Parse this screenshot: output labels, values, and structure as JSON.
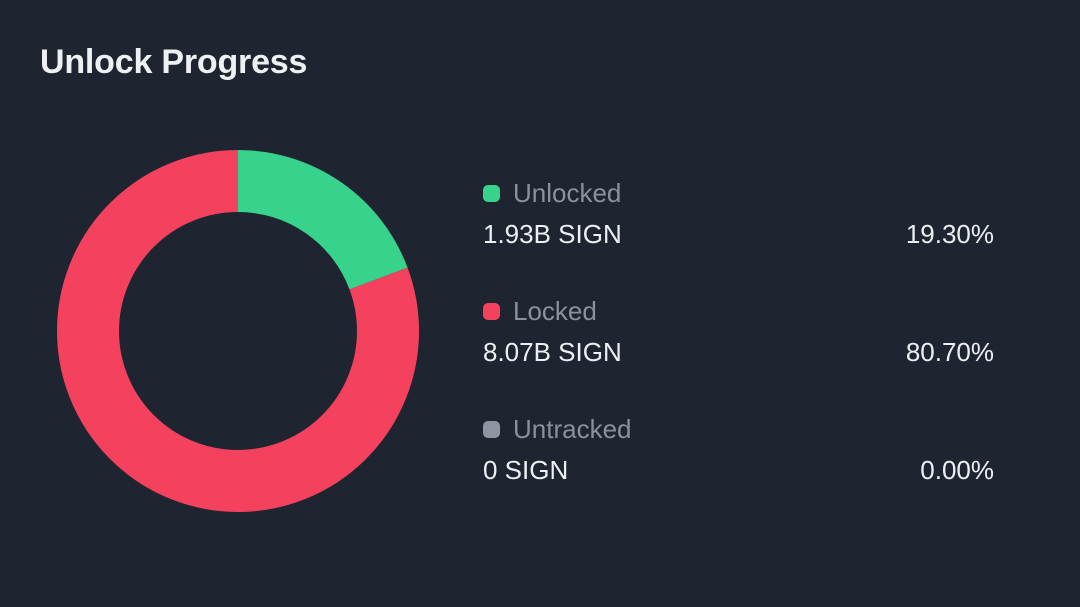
{
  "title": "Unlock Progress",
  "colors": {
    "background": "#1F2530",
    "unlocked": "#37D38D",
    "locked": "#F4415E",
    "untracked": "#8F96A3",
    "label_text": "#8A919D",
    "value_text": "#EDF0F2"
  },
  "chart_data": {
    "type": "pie",
    "donut": true,
    "title": "Unlock Progress",
    "unit": "SIGN",
    "legend_position": "right",
    "start_angle_deg": 0,
    "direction": "clockwise",
    "segments": [
      {
        "label": "Unlocked",
        "value": 1930000000,
        "value_text": "1.93B SIGN",
        "percent": 19.3,
        "percent_text": "19.30%",
        "color": "#37D38D"
      },
      {
        "label": "Locked",
        "value": 8070000000,
        "value_text": "8.07B SIGN",
        "percent": 80.7,
        "percent_text": "80.70%",
        "color": "#F4415E"
      },
      {
        "label": "Untracked",
        "value": 0,
        "value_text": "0 SIGN",
        "percent": 0.0,
        "percent_text": "0.00%",
        "color": "#8F96A3"
      }
    ]
  }
}
